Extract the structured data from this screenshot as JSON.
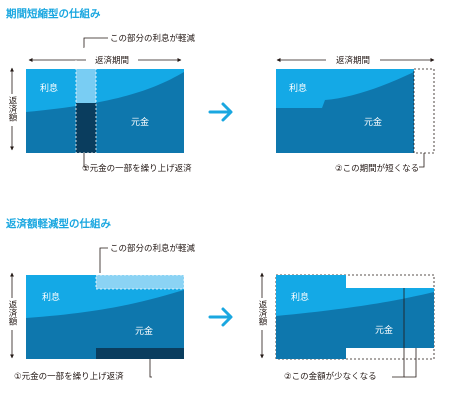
{
  "colors": {
    "accent": "#1aa7e0",
    "principal": "#0e77ad",
    "interest": "#14a9e6",
    "prepaid": "#0a3d5e",
    "reduced": "#8bd3f4",
    "text": "#231815"
  },
  "section1": {
    "title": "期間短縮型の仕組み",
    "callout_top": "この部分の利息が軽減",
    "period_label": "返済期間",
    "amount_label": "返済額",
    "interest_label": "利息",
    "principal_label": "元金",
    "note_left": "①元金の一部を繰り上げ返済",
    "period_label_right": "返済期間",
    "interest_label_right": "利息",
    "principal_label_right": "元金",
    "note_right": "②この期間が短くなる"
  },
  "section2": {
    "title": "返済額軽減型の仕組み",
    "callout_top": "この部分の利息が軽減",
    "amount_label": "返済額",
    "interest_label": "利息",
    "principal_label": "元金",
    "note_left": "①元金の一部を繰り上げ返済",
    "amount_label_right": "返済額",
    "interest_label_right": "利息",
    "principal_label_right": "元金",
    "note_right": "②この金額が少なくなる"
  },
  "icons": [
    "arrow-right-icon",
    "arrow-right-icon"
  ]
}
